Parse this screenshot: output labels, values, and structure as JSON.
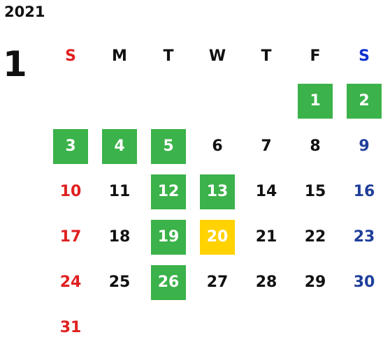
{
  "calendar": {
    "year": "2021",
    "month": "1",
    "weekdays": [
      {
        "label": "S",
        "color": "#e02020"
      },
      {
        "label": "M",
        "color": "#111111"
      },
      {
        "label": "T",
        "color": "#111111"
      },
      {
        "label": "W",
        "color": "#111111"
      },
      {
        "label": "T",
        "color": "#111111"
      },
      {
        "label": "F",
        "color": "#111111"
      },
      {
        "label": "S",
        "color": "#1030d0"
      }
    ],
    "colors": {
      "sunday": "#e02020",
      "saturday_dates": "#1f3f9a",
      "weekday": "#111111",
      "green_highlight": "#3bb24a",
      "yellow_highlight": "#ffd200"
    },
    "days": [
      {
        "day": "1",
        "col": 5,
        "row": 0,
        "highlight": "green"
      },
      {
        "day": "2",
        "col": 6,
        "row": 0,
        "highlight": "green"
      },
      {
        "day": "3",
        "col": 0,
        "row": 1,
        "highlight": "green"
      },
      {
        "day": "4",
        "col": 1,
        "row": 1,
        "highlight": "green"
      },
      {
        "day": "5",
        "col": 2,
        "row": 1,
        "highlight": "green"
      },
      {
        "day": "6",
        "col": 3,
        "row": 1,
        "highlight": ""
      },
      {
        "day": "7",
        "col": 4,
        "row": 1,
        "highlight": ""
      },
      {
        "day": "8",
        "col": 5,
        "row": 1,
        "highlight": ""
      },
      {
        "day": "9",
        "col": 6,
        "row": 1,
        "highlight": ""
      },
      {
        "day": "10",
        "col": 0,
        "row": 2,
        "highlight": ""
      },
      {
        "day": "11",
        "col": 1,
        "row": 2,
        "highlight": ""
      },
      {
        "day": "12",
        "col": 2,
        "row": 2,
        "highlight": "green"
      },
      {
        "day": "13",
        "col": 3,
        "row": 2,
        "highlight": "green"
      },
      {
        "day": "14",
        "col": 4,
        "row": 2,
        "highlight": ""
      },
      {
        "day": "15",
        "col": 5,
        "row": 2,
        "highlight": ""
      },
      {
        "day": "16",
        "col": 6,
        "row": 2,
        "highlight": ""
      },
      {
        "day": "17",
        "col": 0,
        "row": 3,
        "highlight": ""
      },
      {
        "day": "18",
        "col": 1,
        "row": 3,
        "highlight": ""
      },
      {
        "day": "19",
        "col": 2,
        "row": 3,
        "highlight": "green"
      },
      {
        "day": "20",
        "col": 3,
        "row": 3,
        "highlight": "yellow"
      },
      {
        "day": "21",
        "col": 4,
        "row": 3,
        "highlight": ""
      },
      {
        "day": "22",
        "col": 5,
        "row": 3,
        "highlight": ""
      },
      {
        "day": "23",
        "col": 6,
        "row": 3,
        "highlight": ""
      },
      {
        "day": "24",
        "col": 0,
        "row": 4,
        "highlight": ""
      },
      {
        "day": "25",
        "col": 1,
        "row": 4,
        "highlight": ""
      },
      {
        "day": "26",
        "col": 2,
        "row": 4,
        "highlight": "green"
      },
      {
        "day": "27",
        "col": 3,
        "row": 4,
        "highlight": ""
      },
      {
        "day": "28",
        "col": 4,
        "row": 4,
        "highlight": ""
      },
      {
        "day": "29",
        "col": 5,
        "row": 4,
        "highlight": ""
      },
      {
        "day": "30",
        "col": 6,
        "row": 4,
        "highlight": ""
      },
      {
        "day": "31",
        "col": 0,
        "row": 5,
        "highlight": ""
      }
    ]
  }
}
